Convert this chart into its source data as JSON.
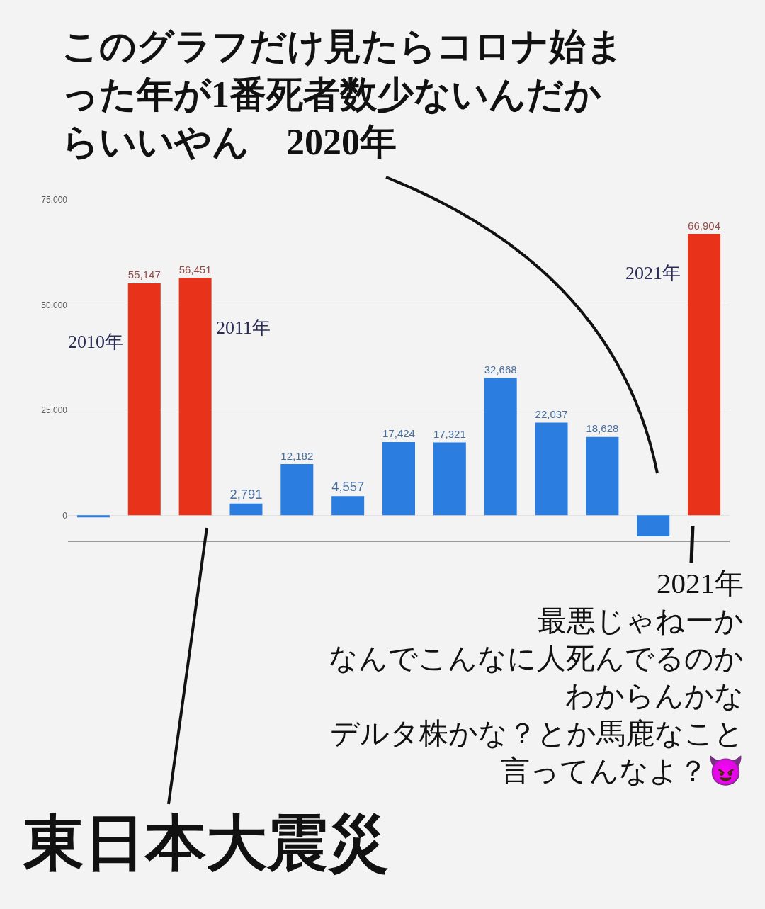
{
  "chart_data": {
    "type": "bar",
    "categories": [
      null,
      null,
      null,
      null,
      null,
      null,
      null,
      null,
      null,
      null,
      null,
      null,
      null
    ],
    "values": [
      -500,
      55147,
      56451,
      2791,
      12182,
      4557,
      17424,
      17321,
      32668,
      22037,
      18628,
      -5000,
      66904
    ],
    "colors": [
      "#2b7de0",
      "#e8321a",
      "#e8321a",
      "#2b7de0",
      "#2b7de0",
      "#2b7de0",
      "#2b7de0",
      "#2b7de0",
      "#2b7de0",
      "#2b7de0",
      "#2b7de0",
      "#2b7de0",
      "#e8321a"
    ],
    "value_labels": [
      null,
      "55,147",
      "56,451",
      "2,791",
      "12,182",
      "4,557",
      "17,424",
      "17,321",
      "32,668",
      "22,037",
      "18,628",
      null,
      "66,904"
    ],
    "ylim": [
      -6000,
      75000
    ],
    "yticks": [
      0,
      {
        "value": 25000,
        "label": "25,000"
      },
      {
        "value": 50000,
        "label": "50,000"
      },
      {
        "value": 75000,
        "label": "75,000"
      }
    ],
    "grid": "y",
    "legend": false,
    "tick_labels": "y",
    "annotations": [
      "このグラフだけ見たらコロナ始まった年が1番死者数少ないんだからいいやん　2020年",
      "2010年",
      "2011年",
      "2021年",
      "2021年",
      "最悪じゃねーか",
      "なんでこんなに人死んでるのかわからんかな",
      "デルタ株かな？とか馬鹿なこと言ってんなよ？😈",
      "東日本大震災"
    ]
  }
}
